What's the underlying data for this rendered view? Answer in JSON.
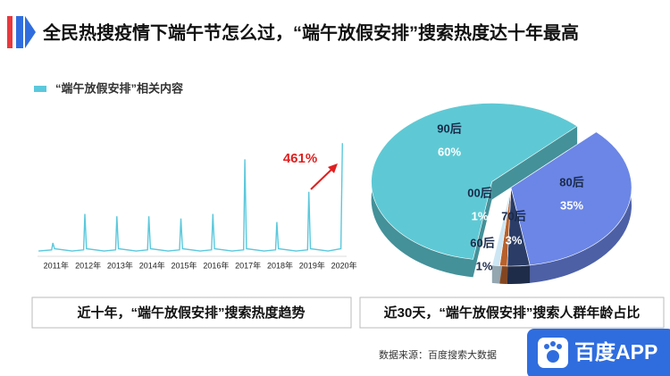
{
  "title": "全民热搜疫情下端午节怎么过，“端午放假安排”搜索热度达十年最高",
  "source": "数据来源：百度搜索大数据",
  "logo": "百度APP",
  "chart_data": [
    {
      "type": "line",
      "title": "近十年，“端午放假安排”搜索热度趋势",
      "annotation": "461%",
      "x": [
        2010.45,
        2010.86,
        2010.9,
        2010.95,
        2011.5,
        2011.86,
        2011.9,
        2011.95,
        2012.5,
        2012.86,
        2012.9,
        2012.95,
        2013.5,
        2013.86,
        2013.9,
        2013.95,
        2014.5,
        2014.86,
        2014.9,
        2014.95,
        2015.5,
        2015.86,
        2015.9,
        2015.95,
        2016.5,
        2016.86,
        2016.9,
        2016.95,
        2017.5,
        2017.86,
        2017.9,
        2017.95,
        2018.5,
        2018.86,
        2018.9,
        2018.95,
        2019.5,
        2019.9,
        2019.95
      ],
      "series": [
        {
          "name": "“端午放假安排”相关内容",
          "color": "#5bc8dc",
          "values": [
            3,
            4,
            10,
            5,
            3,
            4,
            35,
            5,
            3,
            4,
            33,
            5,
            3,
            4,
            33,
            5,
            3,
            4,
            31,
            5,
            3,
            4,
            35,
            5,
            3,
            4,
            82,
            5,
            3,
            4,
            28,
            5,
            3,
            4,
            54,
            5,
            3,
            5,
            96
          ]
        }
      ],
      "xlim": [
        2010.42,
        2020.08
      ],
      "xticks": [
        {
          "value": 2011,
          "label": "2011年"
        },
        {
          "value": 2012,
          "label": "2012年"
        },
        {
          "value": 2013,
          "label": "2013年"
        },
        {
          "value": 2014,
          "label": "2014年"
        },
        {
          "value": 2015,
          "label": "2015年"
        },
        {
          "value": 2016,
          "label": "2016年"
        },
        {
          "value": 2017,
          "label": "2017年"
        },
        {
          "value": 2018,
          "label": "2018年"
        },
        {
          "value": 2019,
          "label": "2019年"
        },
        {
          "value": 2020,
          "label": "2020年"
        }
      ],
      "ylim": [
        0,
        100
      ]
    },
    {
      "type": "pie",
      "title": "近30天，“端午放假安排”搜索人群年龄占比",
      "categories": [
        "80后",
        "70后",
        "60后",
        "00后",
        "90后"
      ],
      "values": [
        35,
        3,
        1,
        1,
        60
      ],
      "value_labels": [
        "35%",
        "3%",
        "1%",
        "1%",
        "60%"
      ],
      "colors": [
        "#6b86e6",
        "#2b3d66",
        "#b8612c",
        "#cde6f4",
        "#5ec9d4"
      ],
      "exploded": "90后"
    }
  ]
}
